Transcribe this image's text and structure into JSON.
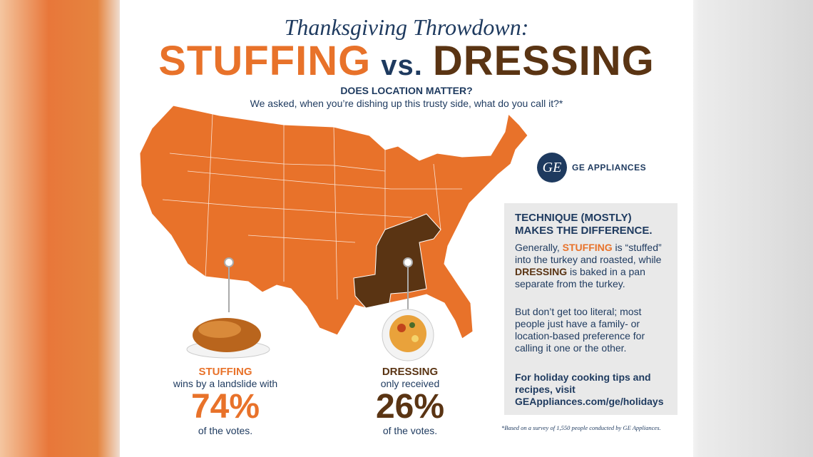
{
  "header": {
    "title": "Thanksgiving Throwdown:",
    "stuffing": "STUFFING",
    "vs": "vs.",
    "dressing": "DRESSING",
    "question": "DOES LOCATION MATTER?",
    "subtitle": "We asked, when you’re dishing up this trusty side, what do you call it?*"
  },
  "brand": {
    "logo_mark": "GE",
    "name": "GE APPLIANCES"
  },
  "colors": {
    "stuffing": "#e8722a",
    "dressing": "#5a3413",
    "navy": "#1e3a5f"
  },
  "map": {
    "dressing_states": [
      "Kentucky",
      "Tennessee",
      "Mississippi",
      "Alabama",
      "Louisiana"
    ]
  },
  "info": {
    "heading": "TECHNIQUE (MOSTLY) MAKES THE DIFFERENCE.",
    "p1_a": "Generally, ",
    "p1_stuffing": "STUFFING",
    "p1_b": " is “stuffed” into the turkey and roasted, while ",
    "p1_dressing": "DRESSING",
    "p1_c": " is baked in a pan separate from the turkey.",
    "p2": "But don’t get too literal; most people just have a family- or location-based preference for calling it one or the other.",
    "cta": "For holiday cooking tips and recipes, visit GEAppliances.com/ge/holidays"
  },
  "stats": {
    "stuffing": {
      "label": "STUFFING",
      "line": "wins by a landslide with",
      "percent": "74%",
      "tail": "of the votes.",
      "value": 74
    },
    "dressing": {
      "label": "DRESSING",
      "line": "only received",
      "percent": "26%",
      "tail": "of the votes.",
      "value": 26
    }
  },
  "footnote": "*Based on a survey of 1,550 people conducted by GE Appliances."
}
